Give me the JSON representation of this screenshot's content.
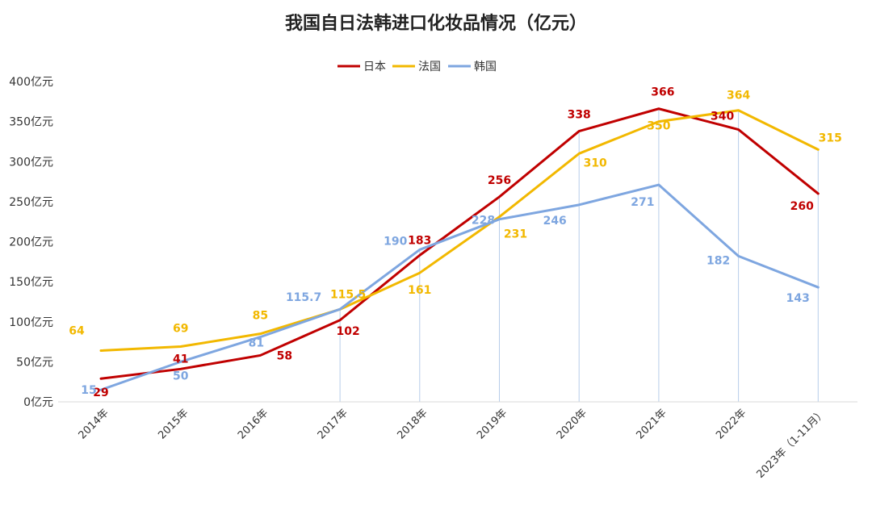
{
  "chart_data": {
    "type": "line",
    "title": "我国自日法韩进口化妆品情况（亿元）",
    "categories": [
      "2014年",
      "2015年",
      "2016年",
      "2017年",
      "2018年",
      "2019年",
      "2020年",
      "2021年",
      "2022年",
      "2023年（1-11月）"
    ],
    "ytick_labels": [
      "0亿元",
      "50亿元",
      "100亿元",
      "150亿元",
      "200亿元",
      "250亿元",
      "300亿元",
      "350亿元",
      "400亿元"
    ],
    "ylim": [
      0,
      400
    ],
    "grid": false,
    "legend_position": "top",
    "series": [
      {
        "name": "日本",
        "color": "#c00000",
        "values": [
          29,
          41,
          58,
          102,
          183,
          256,
          338,
          366,
          340,
          260
        ],
        "labels": [
          "29",
          "41",
          "58",
          "102",
          "183",
          "256",
          "338",
          "366",
          "340",
          "260"
        ]
      },
      {
        "name": "法国",
        "color": "#f2b800",
        "values": [
          64,
          69,
          85,
          115.5,
          161,
          231,
          310,
          350,
          364,
          315
        ],
        "labels": [
          "64",
          "69",
          "85",
          "115.5",
          "161",
          "231",
          "310",
          "350",
          "364",
          "315"
        ]
      },
      {
        "name": "韩国",
        "color": "#7ea6e0",
        "values": [
          15,
          50,
          81,
          115.7,
          190,
          228,
          246,
          271,
          182,
          143
        ],
        "labels": [
          "15",
          "50",
          "81",
          "115.7",
          "190",
          "228",
          "246",
          "271",
          "182",
          "143"
        ]
      }
    ]
  }
}
